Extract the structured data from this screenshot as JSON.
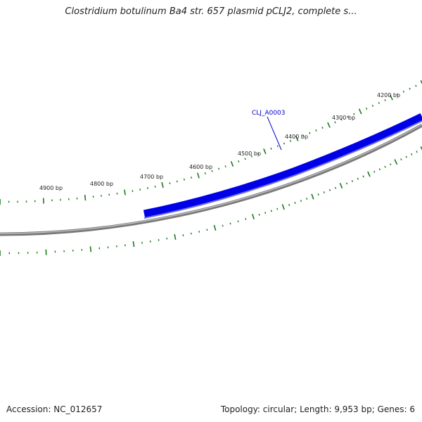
{
  "map": {
    "title": "Clostridium botulinum Ba4 str. 657 plasmid pCLJ2, complete s...",
    "accession_text": "Accession: NC_012657",
    "summary_text": "Topology: circular; Length: 9,953 bp; Genes: 6",
    "colors": {
      "backbone": "#8a8a8a",
      "gene": "#0000e6",
      "gene_light": "#5a5aff",
      "ticks": "#1a7a1a",
      "label": "#0000cc"
    },
    "tick_labels": [
      "4200 bp",
      "4300 bp",
      "4400 bp",
      "4500 bp",
      "4600 bp",
      "4700 bp",
      "4800 bp",
      "4900 bp"
    ],
    "genes": [
      {
        "label": "CLJ_A0003",
        "strand": "forward"
      }
    ]
  }
}
